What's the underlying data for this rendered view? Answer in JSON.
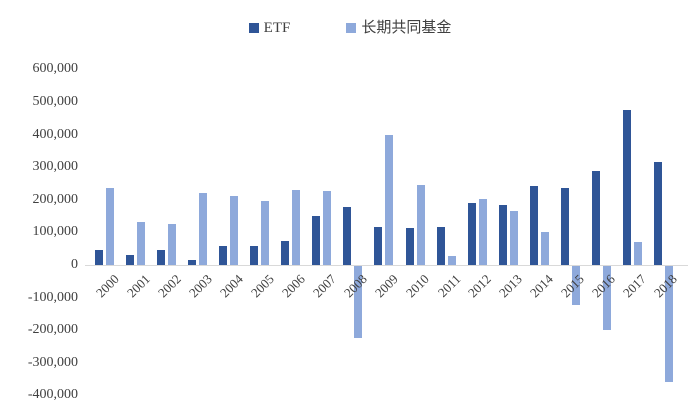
{
  "legend": {
    "items": [
      {
        "label": "ETF",
        "color": "#2F5597"
      },
      {
        "label": "长期共同基金",
        "color": "#8EA9DB"
      }
    ]
  },
  "chart_data": {
    "type": "bar",
    "title": "",
    "xlabel": "",
    "ylabel": "",
    "categories": [
      2000,
      2001,
      2002,
      2003,
      2004,
      2005,
      2006,
      2007,
      2008,
      2009,
      2010,
      2011,
      2012,
      2013,
      2014,
      2015,
      2016,
      2017,
      2018
    ],
    "series": [
      {
        "name": "ETF",
        "color": "#2F5597",
        "values": [
          45000,
          30000,
          46000,
          16000,
          57000,
          58000,
          74000,
          151000,
          178000,
          116000,
          115000,
          117000,
          189000,
          185000,
          242000,
          235000,
          289000,
          476000,
          317000
        ]
      },
      {
        "name": "长期共同基金",
        "color": "#8EA9DB",
        "values": [
          235000,
          133000,
          125000,
          221000,
          212000,
          195000,
          230000,
          227000,
          -220000,
          398000,
          244000,
          27000,
          203000,
          167000,
          100000,
          -121000,
          -197000,
          70000,
          -357000
        ]
      }
    ],
    "ylim": [
      -400000,
      600000
    ],
    "ytick_step": 100000,
    "y_tick_labels": [
      "600,000",
      "500,000",
      "400,000",
      "300,000",
      "200,000",
      "100,000",
      "0",
      "-100,000",
      "-200,000",
      "-300,000",
      "-400,000"
    ],
    "grid": false,
    "legend_position": "top-center",
    "axis_color": "#d9d9d9",
    "text_color": "#404040"
  }
}
